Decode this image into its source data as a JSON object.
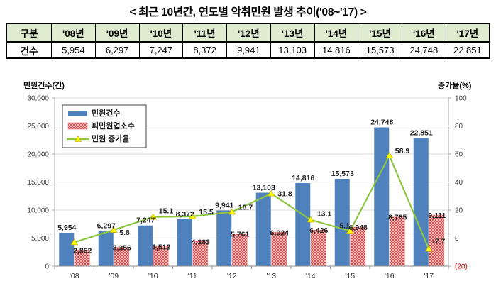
{
  "title": "< 최근 10년간, 연도별 악취민원 발생 추이('08~'17) >",
  "table": {
    "header": [
      "구분",
      "'08년",
      "'09년",
      "'10년",
      "'11년",
      "'12년",
      "'13년",
      "'14년",
      "'15년",
      "'16년",
      "'17년"
    ],
    "rows": [
      [
        "건수",
        "5,954",
        "6,297",
        "7,247",
        "8,372",
        "9,941",
        "13,103",
        "14,816",
        "15,573",
        "24,748",
        "22,851"
      ]
    ]
  },
  "chart_data": {
    "type": "bar",
    "subtype": "grouped-bars-with-line-combo",
    "categories": [
      "'08",
      "'09",
      "'10",
      "'11",
      "'12",
      "'13",
      "'14",
      "'15",
      "'16",
      "'17"
    ],
    "series": [
      {
        "name": "민원건수",
        "type": "bar",
        "axis": "left",
        "color": "#4F81BD",
        "values": [
          5954,
          6297,
          7247,
          8372,
          9941,
          13103,
          14816,
          15573,
          24748,
          22851
        ],
        "labels": [
          "5,954",
          "6,297",
          "7,247",
          "8,372",
          "9,941",
          "13,103",
          "14,816",
          "15,573",
          "24,748",
          "22,851"
        ]
      },
      {
        "name": "피민원업소수",
        "type": "bar",
        "axis": "left",
        "color": "#E03A3A",
        "fill_style": "red-crosshatch-on-white",
        "values": [
          2862,
          3356,
          3512,
          4383,
          5761,
          6024,
          6426,
          6948,
          8785,
          9111
        ],
        "labels": [
          "2,862",
          "3,356",
          "3,512",
          "4,383",
          "5,761",
          "6,024",
          "6,426",
          "6,948",
          "8,785",
          "9,111"
        ]
      },
      {
        "name": "민원 증가율",
        "type": "line",
        "axis": "right",
        "color": "#8DC63F",
        "marker": "yellow-triangle",
        "marker_color": "#FFFF00",
        "values": [
          -3,
          5.8,
          15.1,
          15.5,
          18.7,
          31.8,
          13.1,
          5.1,
          58.9,
          -7.7
        ],
        "labels": [
          "",
          "5.8",
          "15.1",
          "15.5",
          "18.7",
          "31.8",
          "13.1",
          "5.1",
          "58.9",
          "-7.7"
        ]
      }
    ],
    "left_axis": {
      "title": "민원건수(건)",
      "min": 0,
      "max": 30000,
      "step": 5000,
      "tick_labels": [
        "0",
        "5,000",
        "10,000",
        "15,000",
        "20,000",
        "25,000",
        "30,000"
      ]
    },
    "right_axis": {
      "title": "증가율(%)",
      "min": -20,
      "max": 100,
      "step": 20,
      "tick_labels": [
        "(20)",
        "0",
        "20",
        "40",
        "60",
        "80",
        "100"
      ],
      "negative_tick_color": "#E00000"
    },
    "legend": {
      "position": "top-left-inside",
      "entries": [
        "민원건수",
        "피민원업소수",
        "민원 증가율"
      ]
    },
    "grid": "horizontal-light-gray",
    "colors": {
      "bar_blue": "#4F81BD",
      "bar_red_hatch": "#E03A3A",
      "line_green": "#8DC63F",
      "marker_yellow": "#FFFF00",
      "gridline": "#D9D9D9",
      "axis_line": "#A6A6A6",
      "tick_text": "#3F3F3F",
      "data_label": "#1F1F1F"
    }
  }
}
